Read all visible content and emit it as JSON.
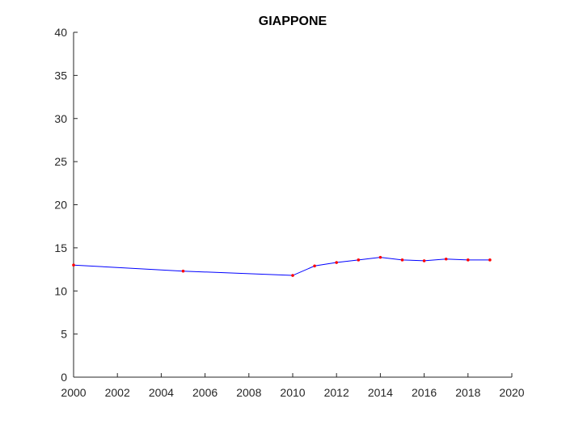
{
  "chart_data": {
    "type": "line",
    "title": "GIAPPONE",
    "xlabel": "",
    "ylabel": "",
    "xlim": [
      2000,
      2020
    ],
    "ylim": [
      0,
      40
    ],
    "xticks": [
      2000,
      2002,
      2004,
      2006,
      2008,
      2010,
      2012,
      2014,
      2016,
      2018,
      2020
    ],
    "yticks": [
      0,
      5,
      10,
      15,
      20,
      25,
      30,
      35,
      40
    ],
    "grid": false,
    "line_color": "#0000ff",
    "marker_color": "#ff0000",
    "axis_color": "#262626",
    "series": [
      {
        "x": [
          2000,
          2005,
          2010,
          2011,
          2012,
          2013,
          2014,
          2015,
          2016,
          2017,
          2018,
          2019
        ],
        "y": [
          13.0,
          12.3,
          11.8,
          12.9,
          13.3,
          13.6,
          13.9,
          13.6,
          13.5,
          13.7,
          13.6,
          13.6
        ]
      }
    ]
  }
}
